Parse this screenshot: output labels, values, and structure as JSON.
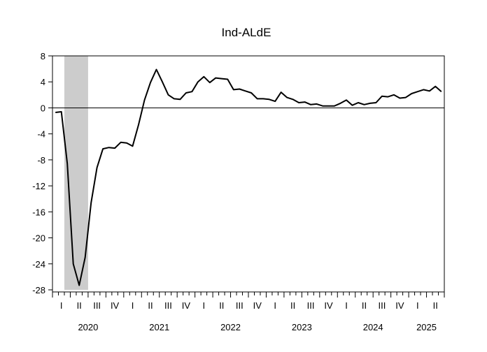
{
  "chart_data": {
    "type": "line",
    "title": "Ind-ALdE",
    "xlabel": "",
    "ylabel": "",
    "ylim": [
      -28,
      8
    ],
    "yticks": [
      8,
      4,
      0,
      -4,
      -8,
      -12,
      -16,
      -20,
      -24,
      -28
    ],
    "reference_line_y": 0,
    "grid": false,
    "legend": "none",
    "x_start": "2020-01",
    "x_end": "2025-06",
    "quarter_ticks": [
      "I",
      "II",
      "III",
      "IV",
      "I",
      "II",
      "III",
      "IV",
      "I",
      "II",
      "III",
      "IV",
      "I",
      "II",
      "III",
      "IV",
      "I",
      "II",
      "III",
      "IV",
      "I",
      "II"
    ],
    "year_labels": [
      "2020",
      "2021",
      "2022",
      "2023",
      "2024",
      "2025"
    ],
    "shaded_periods": [
      {
        "start": "2020-03",
        "end": "2020-06",
        "color": "#cccccc"
      }
    ],
    "series": [
      {
        "color": "#000000",
        "x": [
          "2020-01",
          "2020-02",
          "2020-03",
          "2020-04",
          "2020-05",
          "2020-06",
          "2020-07",
          "2020-08",
          "2020-09",
          "2020-10",
          "2020-11",
          "2020-12",
          "2021-01",
          "2021-02",
          "2021-03",
          "2021-04",
          "2021-05",
          "2021-06",
          "2021-07",
          "2021-08",
          "2021-09",
          "2021-10",
          "2021-11",
          "2021-12",
          "2022-01",
          "2022-02",
          "2022-03",
          "2022-04",
          "2022-05",
          "2022-06",
          "2022-07",
          "2022-08",
          "2022-09",
          "2022-10",
          "2022-11",
          "2022-12",
          "2023-01",
          "2023-02",
          "2023-03",
          "2023-04",
          "2023-05",
          "2023-06",
          "2023-07",
          "2023-08",
          "2023-09",
          "2023-10",
          "2023-11",
          "2023-12",
          "2024-01",
          "2024-02",
          "2024-03",
          "2024-04",
          "2024-05",
          "2024-06",
          "2024-07",
          "2024-08",
          "2024-09",
          "2024-10",
          "2024-11",
          "2024-12",
          "2025-01",
          "2025-02",
          "2025-03",
          "2025-04",
          "2025-05",
          "2025-06"
        ],
        "values": [
          -0.7,
          -0.6,
          -8.6,
          -24.0,
          -27.3,
          -23.0,
          -14.6,
          -9.2,
          -6.3,
          -6.1,
          -6.2,
          -5.3,
          -5.4,
          -5.9,
          -2.6,
          1.2,
          3.9,
          5.9,
          4.0,
          2.0,
          1.4,
          1.3,
          2.3,
          2.5,
          4.0,
          4.8,
          3.9,
          4.6,
          4.5,
          4.4,
          2.8,
          2.9,
          2.6,
          2.3,
          1.4,
          1.4,
          1.3,
          1.0,
          2.4,
          1.6,
          1.3,
          0.8,
          0.9,
          0.5,
          0.6,
          0.3,
          0.3,
          0.3,
          0.7,
          1.2,
          0.4,
          0.8,
          0.5,
          0.7,
          0.8,
          1.8,
          1.7,
          2.0,
          1.5,
          1.6,
          2.2,
          2.5,
          2.8,
          2.6,
          3.3,
          2.5
        ]
      }
    ]
  }
}
